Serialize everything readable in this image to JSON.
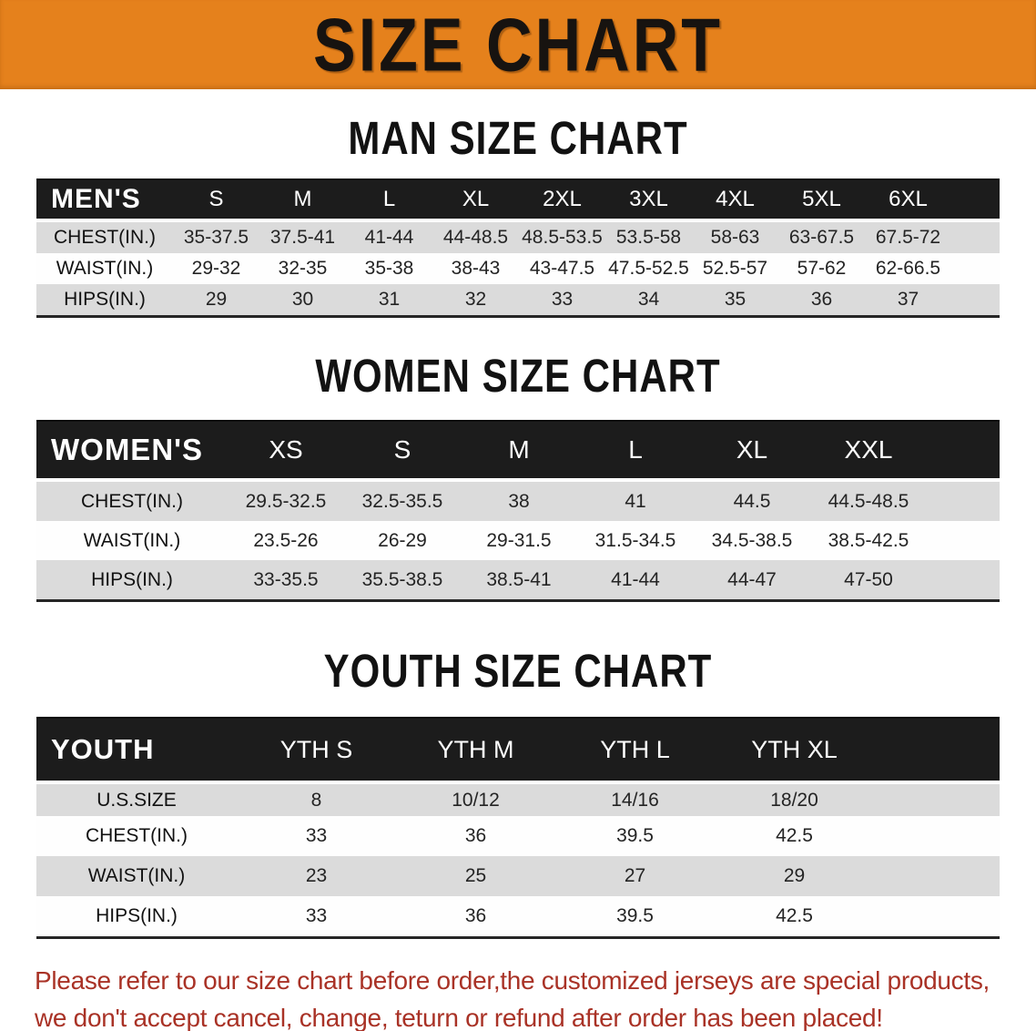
{
  "banner": {
    "title": "SIZE CHART",
    "bg_color": "#E5811C",
    "text_color": "#171310"
  },
  "sections": [
    {
      "heading": "MAN SIZE CHART",
      "table": {
        "header_label": "MEN'S",
        "columns": [
          "S",
          "M",
          "L",
          "XL",
          "2XL",
          "3XL",
          "4XL",
          "5XL",
          "6XL"
        ],
        "rows": [
          {
            "label": "CHEST(IN.)",
            "values": [
              "35-37.5",
              "37.5-41",
              "41-44",
              "44-48.5",
              "48.5-53.5",
              "53.5-58",
              "58-63",
              "63-67.5",
              "67.5-72"
            ]
          },
          {
            "label": "WAIST(IN.)",
            "values": [
              "29-32",
              "32-35",
              "35-38",
              "38-43",
              "43-47.5",
              "47.5-52.5",
              "52.5-57",
              "57-62",
              "62-66.5"
            ]
          },
          {
            "label": "HIPS(IN.)",
            "values": [
              "29",
              "30",
              "31",
              "32",
              "33",
              "34",
              "35",
              "36",
              "37"
            ]
          }
        ]
      }
    },
    {
      "heading": "WOMEN SIZE CHART",
      "table": {
        "header_label": "WOMEN'S",
        "columns": [
          "XS",
          "S",
          "M",
          "L",
          "XL",
          "XXL"
        ],
        "rows": [
          {
            "label": "CHEST(IN.)",
            "values": [
              "29.5-32.5",
              "32.5-35.5",
              "38",
              "41",
              "44.5",
              "44.5-48.5"
            ]
          },
          {
            "label": "WAIST(IN.)",
            "values": [
              "23.5-26",
              "26-29",
              "29-31.5",
              "31.5-34.5",
              "34.5-38.5",
              "38.5-42.5"
            ]
          },
          {
            "label": "HIPS(IN.)",
            "values": [
              "33-35.5",
              "35.5-38.5",
              "38.5-41",
              "41-44",
              "44-47",
              "47-50"
            ]
          }
        ]
      }
    },
    {
      "heading": "YOUTH SIZE CHART",
      "table": {
        "header_label": "YOUTH",
        "columns": [
          "YTH S",
          "YTH M",
          "YTH L",
          "YTH XL"
        ],
        "rows": [
          {
            "label": "U.S.SIZE",
            "values": [
              "8",
              "10/12",
              "14/16",
              "18/20"
            ]
          },
          {
            "label": "CHEST(IN.)",
            "values": [
              "33",
              "36",
              "39.5",
              "42.5"
            ]
          },
          {
            "label": "WAIST(IN.)",
            "values": [
              "23",
              "25",
              "27",
              "29"
            ]
          },
          {
            "label": "HIPS(IN.)",
            "values": [
              "33",
              "36",
              "39.5",
              "42.5"
            ]
          }
        ]
      }
    }
  ],
  "disclaimer": {
    "line1": "Please refer to our size chart before order,the customized jerseys are special products,",
    "line2": "we don't accept cancel, change, teturn or refund after order has been placed!",
    "text_color": "#A93226"
  }
}
